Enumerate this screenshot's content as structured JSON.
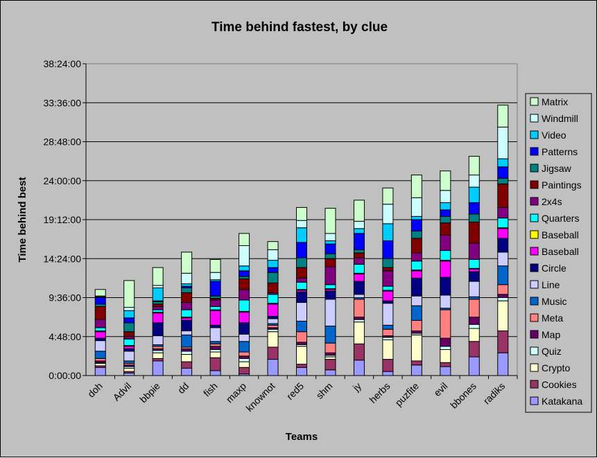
{
  "chart_data": {
    "type": "bar",
    "stacked": true,
    "title": "Time behind fastest, by clue",
    "xlabel": "Teams",
    "ylabel": "Time behind best",
    "ylim": [
      0,
      38.4
    ],
    "yticks": [
      "0:00:00",
      "4:48:00",
      "9:36:00",
      "14:24:00",
      "19:12:00",
      "24:00:00",
      "28:48:00",
      "33:36:00",
      "38:24:00"
    ],
    "grid": true,
    "legend_position": "right",
    "categories": [
      "doh",
      "Advil",
      "bbpie",
      "dd",
      "fish",
      "maxp",
      "knownot",
      "red5",
      "shm",
      "jy",
      "herbs",
      "puzfite",
      "evil",
      "bbones",
      "radiks"
    ],
    "series": [
      {
        "name": "Katakana",
        "color": "#9999FF",
        "values": [
          1.0,
          0.3,
          1.8,
          0.9,
          0.6,
          0.2,
          2.0,
          1.0,
          0.7,
          1.9,
          0.5,
          1.3,
          1.1,
          2.3,
          2.8
        ]
      },
      {
        "name": "Cookies",
        "color": "#993366",
        "values": [
          0.2,
          0.2,
          0.3,
          0.8,
          1.6,
          0.8,
          1.5,
          0.4,
          1.3,
          2.0,
          1.5,
          0.5,
          0.5,
          1.9,
          2.7
        ]
      },
      {
        "name": "Crypto",
        "color": "#FFFFCC",
        "values": [
          0.3,
          0.4,
          0.7,
          0.9,
          0.7,
          0.7,
          1.9,
          2.2,
          0.3,
          2.7,
          2.4,
          3.2,
          1.6,
          1.6,
          3.7
        ]
      },
      {
        "name": "Quiz",
        "color": "#CCFFFF",
        "values": [
          0.1,
          0.2,
          0.3,
          0.4,
          0.3,
          0.4,
          0.3,
          0.2,
          0.2,
          0.3,
          0.3,
          0.2,
          0.4,
          0.5,
          0.4
        ]
      },
      {
        "name": "Map",
        "color": "#660066",
        "values": [
          0.2,
          0.2,
          0.2,
          0.3,
          0.4,
          0.3,
          0.2,
          0.3,
          0.3,
          0.3,
          0.2,
          0.3,
          1.0,
          0.9,
          0.4
        ]
      },
      {
        "name": "Meta",
        "color": "#FF8080",
        "values": [
          0.3,
          0.2,
          0.3,
          0.2,
          0.3,
          0.5,
          0.3,
          1.3,
          1.2,
          2.2,
          0.8,
          1.3,
          3.5,
          2.2,
          1.2
        ]
      },
      {
        "name": "Music",
        "color": "#0066CC",
        "values": [
          0.9,
          0.3,
          0.2,
          1.5,
          0.3,
          1.3,
          0.2,
          1.3,
          2.1,
          0.2,
          0.5,
          1.8,
          0.2,
          0.3,
          2.3
        ]
      },
      {
        "name": "Line",
        "color": "#CCCCFF",
        "values": [
          1.3,
          1.2,
          1.1,
          0.5,
          1.7,
          0.9,
          0.6,
          2.3,
          3.3,
          0.4,
          2.7,
          1.2,
          1.6,
          1.9,
          1.7
        ]
      },
      {
        "name": "Circle",
        "color": "#000080",
        "values": [
          0.3,
          0.3,
          1.6,
          1.3,
          0.3,
          1.4,
          0.3,
          1.3,
          1.0,
          1.6,
          0.3,
          2.2,
          2.2,
          1.2,
          1.7
        ]
      },
      {
        "name": "Baseball",
        "color": "#FF00FF",
        "values": [
          0.8,
          0.3,
          1.2,
          0.3,
          1.8,
          1.3,
          1.5,
          0.2,
          0.2,
          0.9,
          1.2,
          0.9,
          2.0,
          0.3,
          1.2
        ]
      },
      {
        "name": "Baseball",
        "color": "#FFFF00",
        "values": [
          0.1,
          0.1,
          0.1,
          0.1,
          0.1,
          0.1,
          0.1,
          0.1,
          0.1,
          0.1,
          0.1,
          0.1,
          0.1,
          0.1,
          0.1
        ]
      },
      {
        "name": "Quarters",
        "color": "#00FFFF",
        "values": [
          0.4,
          0.8,
          0.3,
          0.9,
          0.4,
          1.4,
          1.1,
          0.9,
          0.5,
          1.1,
          0.5,
          1.1,
          1.2,
          1.1,
          1.2
        ]
      },
      {
        "name": "2x4s",
        "color": "#800080",
        "values": [
          1.0,
          0.3,
          0.4,
          0.9,
          0.8,
          1.3,
          0.2,
          0.5,
          2.2,
          0.8,
          1.9,
          1.0,
          1.9,
          2.0,
          1.3
        ]
      },
      {
        "name": "Paintings",
        "color": "#800000",
        "values": [
          1.6,
          0.6,
          0.3,
          1.2,
          0.2,
          1.3,
          1.2,
          1.3,
          1.0,
          0.6,
          0.4,
          1.8,
          1.5,
          2.6,
          2.9
        ]
      },
      {
        "name": "Jigsaw",
        "color": "#008080",
        "values": [
          0.3,
          1.1,
          0.3,
          0.6,
          0.3,
          0.3,
          1.3,
          1.2,
          0.6,
          0.4,
          1.1,
          0.9,
          0.8,
          1.0,
          0.7
        ]
      },
      {
        "name": "Patterns",
        "color": "#0000FF",
        "values": [
          0.8,
          0.6,
          0.1,
          0.2,
          1.8,
          0.7,
          0.6,
          1.9,
          1.2,
          2.0,
          2.2,
          1.4,
          0.8,
          1.4,
          1.4
        ]
      },
      {
        "name": "Video",
        "color": "#00CCFF",
        "values": [
          0.1,
          0.9,
          1.6,
          0.3,
          0.2,
          0.6,
          0.9,
          1.8,
          0.4,
          0.6,
          2.1,
          0.4,
          0.9,
          1.9,
          1.0
        ]
      },
      {
        "name": "Windmill",
        "color": "#CCFFFF",
        "values": [
          0.1,
          0.4,
          0.3,
          1.3,
          0.9,
          2.5,
          1.3,
          0.9,
          0.9,
          0.9,
          2.4,
          2.3,
          1.5,
          1.5,
          3.9
        ]
      },
      {
        "name": "Matrix",
        "color": "#CCFFCC",
        "values": [
          0.8,
          3.3,
          2.2,
          2.6,
          1.6,
          1.5,
          1.0,
          1.6,
          3.1,
          2.6,
          2.0,
          2.8,
          2.4,
          2.3,
          2.7
        ]
      }
    ]
  }
}
